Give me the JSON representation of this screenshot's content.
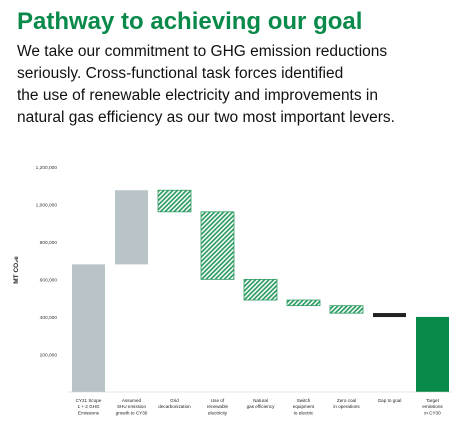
{
  "heading": {
    "title": "Pathway to achieving our goal",
    "intro_lines": [
      "We take our commitment to GHG emission reductions",
      "seriously. Cross-functional task forces identified",
      "the use of renewable electricity and improvements in",
      "natural gas efficiency as our two most important levers."
    ]
  },
  "colors": {
    "grey_bar": "#b9c4c9",
    "green_hatch": "#2e9c63",
    "green_solid": "#0a8a4a",
    "gap_bar": "#222222",
    "title": "#0a8a4a"
  },
  "chart_data": {
    "type": "waterfall",
    "ylabel": "MT CO₂e",
    "ylim": [
      0,
      1300000
    ],
    "yticks": [
      200000,
      400000,
      600000,
      800000,
      1000000,
      1200000
    ],
    "ytick_labels": [
      "200,000",
      "400,000",
      "600,000",
      "800,000",
      "1,000,000",
      "1,200,000"
    ],
    "grid": false,
    "bars": [
      {
        "label": [
          "CY21 Scope",
          "1 + 2 GHG",
          "Emissions"
        ],
        "start": 0,
        "end": 680000,
        "kind": "grey"
      },
      {
        "label": [
          "Assumed",
          "SHU emission",
          "growth to CY30"
        ],
        "start": 680000,
        "end": 1075000,
        "kind": "grey"
      },
      {
        "label": [
          "Grid",
          "decarbonization"
        ],
        "start": 1075000,
        "end": 960000,
        "kind": "hatch"
      },
      {
        "label": [
          "Use of",
          "renewable",
          "electricity"
        ],
        "start": 960000,
        "end": 600000,
        "kind": "hatch"
      },
      {
        "label": [
          "Natural",
          "gas efficiency"
        ],
        "start": 600000,
        "end": 490000,
        "kind": "hatch"
      },
      {
        "label": [
          "Switch",
          "equipment",
          "to electric"
        ],
        "start": 490000,
        "end": 460000,
        "kind": "hatch"
      },
      {
        "label": [
          "Zero coal",
          "in operations"
        ],
        "start": 460000,
        "end": 420000,
        "kind": "hatch"
      },
      {
        "label": [
          "Gap to goal"
        ],
        "start": 420000,
        "end": 400000,
        "kind": "gap"
      },
      {
        "label": [
          "Target",
          "emissions",
          "in CY30"
        ],
        "start": 0,
        "end": 400000,
        "kind": "solid"
      }
    ]
  }
}
